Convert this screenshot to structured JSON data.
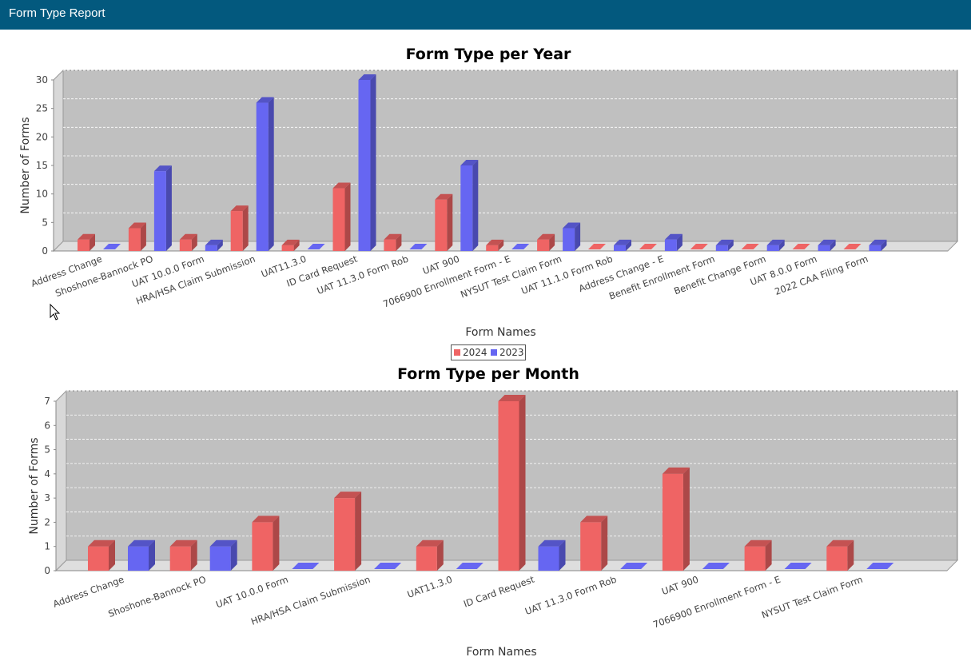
{
  "header": {
    "title": "Form Type Report"
  },
  "legend": [
    {
      "label": "2024",
      "color": "#ef6464"
    },
    {
      "label": "2023",
      "color": "#6666f2"
    }
  ],
  "chart_data": [
    {
      "type": "bar",
      "title": "Form Type per Year",
      "xlabel": "Form Names",
      "ylabel": "Number of Forms",
      "ylim": [
        0,
        30
      ],
      "yticks": [
        0,
        5,
        10,
        15,
        20,
        25,
        30
      ],
      "grid": true,
      "legend_position": "bottom-center",
      "categories": [
        "Address Change",
        "Shoshone-Bannock PO",
        "UAT 10.0.0 Form",
        "HRA/HSA Claim Submission",
        "UAT11.3.0",
        "ID Card Request",
        "UAT 11.3.0 Form Rob",
        "UAT 900",
        "7066900 Enrollment Form - E",
        "NYSUT Test Claim Form",
        "UAT 11.1.0 Form Rob",
        "Address Change - E",
        "Benefit Enrollment Form",
        "Benefit Change Form",
        "UAT 8.0.0 Form",
        "2022 CAA Filing Form"
      ],
      "series": [
        {
          "name": "2024",
          "color": "#ef6464",
          "values": [
            2,
            4,
            2,
            7,
            1,
            11,
            2,
            9,
            1,
            2,
            0,
            0,
            0,
            0,
            0,
            0
          ]
        },
        {
          "name": "2023",
          "color": "#6666f2",
          "values": [
            0,
            14,
            1,
            26,
            0,
            30,
            0,
            15,
            0,
            4,
            1,
            2,
            1,
            1,
            1,
            1
          ]
        }
      ]
    },
    {
      "type": "bar",
      "title": "Form Type per Month",
      "xlabel": "Form Names",
      "ylabel": "Number of Forms",
      "ylim": [
        0,
        7
      ],
      "yticks": [
        0,
        1,
        2,
        3,
        4,
        5,
        6,
        7
      ],
      "grid": true,
      "categories": [
        "Address Change",
        "Shoshone-Bannock PO",
        "UAT 10.0.0 Form",
        "HRA/HSA Claim Submission",
        "UAT11.3.0",
        "ID Card Request",
        "UAT 11.3.0 Form Rob",
        "UAT 900",
        "7066900 Enrollment Form - E",
        "NYSUT Test Claim Form"
      ],
      "series": [
        {
          "name": "2024",
          "color": "#ef6464",
          "values": [
            1,
            1,
            2,
            3,
            1,
            7,
            2,
            4,
            1,
            1
          ]
        },
        {
          "name": "2023",
          "color": "#6666f2",
          "values": [
            1,
            1,
            0,
            0,
            0,
            1,
            0,
            0,
            0,
            0
          ]
        }
      ]
    }
  ]
}
